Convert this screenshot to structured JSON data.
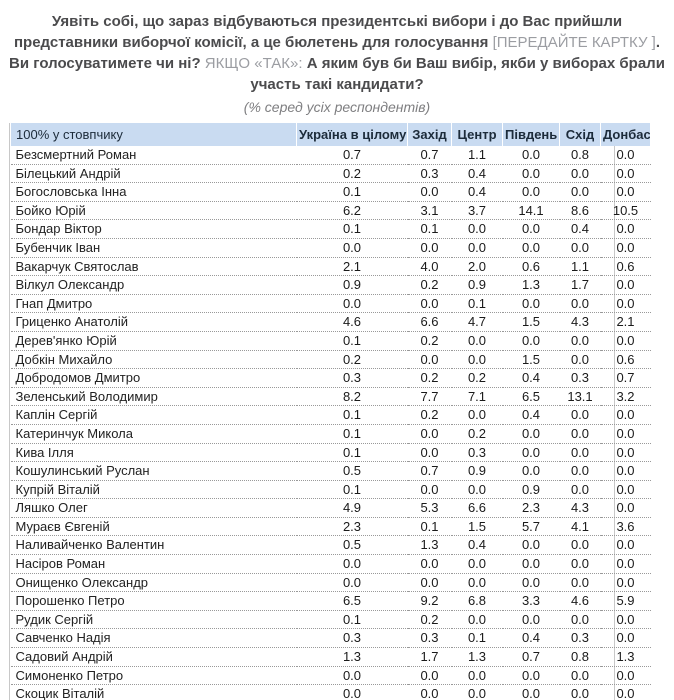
{
  "page": {
    "question_segments": [
      {
        "style": "bold",
        "text": "Уявіть собі, що зараз відбуваються президентські вибори і до Вас прийшли представники виборчої комісії, а це бюлетень для голосування "
      },
      {
        "style": "light",
        "text": "[ПЕРЕДАЙТЕ КАРТКУ ]"
      },
      {
        "style": "bold",
        "text": ". Ви голосуватимете чи ні? "
      },
      {
        "style": "light",
        "text": "ЯКЩО «ТАК»: "
      },
      {
        "style": "bold",
        "text": "А яким був би Ваш вибір, якби у виборах брали участь такі кандидати?"
      }
    ],
    "subtitle": "(% серед усіх респондентів)"
  },
  "chart_data": {
    "type": "table",
    "title": "Уявіть собі, що зараз відбуваються президентські вибори і до Вас прийшли представники виборчої комісії, а це бюлетень для голосування [ПЕРЕДАЙТЕ КАРТКУ ]. Ви голосуватимете чи ні? ЯКЩО «ТАК»: А яким був би Ваш вибір, якби у виборах брали участь такі кандидати?",
    "subtitle": "(% серед усіх респондентів)",
    "columns": [
      "100% у стовпчику",
      "Україна в цілому",
      "Захід",
      "Центр",
      "Південь",
      "Схід",
      "Донбас"
    ],
    "rows": [
      [
        "Безсмертний Роман",
        "0.7",
        "0.7",
        "1.1",
        "0.0",
        "0.8",
        "0.0"
      ],
      [
        "Білецький Андрій",
        "0.2",
        "0.3",
        "0.4",
        "0.0",
        "0.0",
        "0.0"
      ],
      [
        "Богословська Інна",
        "0.1",
        "0.0",
        "0.4",
        "0.0",
        "0.0",
        "0.0"
      ],
      [
        "Бойко Юрій",
        "6.2",
        "3.1",
        "3.7",
        "14.1",
        "8.6",
        "10.5"
      ],
      [
        "Бондар Віктор",
        "0.1",
        "0.1",
        "0.0",
        "0.0",
        "0.4",
        "0.0"
      ],
      [
        "Бубенчик Іван",
        "0.0",
        "0.0",
        "0.0",
        "0.0",
        "0.0",
        "0.0"
      ],
      [
        "Вакарчук Святослав",
        "2.1",
        "4.0",
        "2.0",
        "0.6",
        "1.1",
        "0.6"
      ],
      [
        "Вілкул Олександр",
        "0.9",
        "0.2",
        "0.9",
        "1.3",
        "1.7",
        "0.0"
      ],
      [
        "Гнап Дмитро",
        "0.0",
        "0.0",
        "0.1",
        "0.0",
        "0.0",
        "0.0"
      ],
      [
        "Гриценко Анатолій",
        "4.6",
        "6.6",
        "4.7",
        "1.5",
        "4.3",
        "2.1"
      ],
      [
        "Дерев'янко Юрій",
        "0.1",
        "0.2",
        "0.0",
        "0.0",
        "0.0",
        "0.0"
      ],
      [
        "Добкін Михайло",
        "0.2",
        "0.0",
        "0.0",
        "1.5",
        "0.0",
        "0.6"
      ],
      [
        "Добродомов Дмитро",
        "0.3",
        "0.2",
        "0.2",
        "0.4",
        "0.3",
        "0.7"
      ],
      [
        "Зеленський Володимир",
        "8.2",
        "7.7",
        "7.1",
        "6.5",
        "13.1",
        "3.2"
      ],
      [
        "Каплін Сергій",
        "0.1",
        "0.2",
        "0.0",
        "0.4",
        "0.0",
        "0.0"
      ],
      [
        "Катеринчук Микола",
        "0.1",
        "0.0",
        "0.2",
        "0.0",
        "0.0",
        "0.0"
      ],
      [
        "Кива Ілля",
        "0.1",
        "0.0",
        "0.3",
        "0.0",
        "0.0",
        "0.0"
      ],
      [
        "Кошулинський Руслан",
        "0.5",
        "0.7",
        "0.9",
        "0.0",
        "0.0",
        "0.0"
      ],
      [
        "Купрій Віталій",
        "0.1",
        "0.0",
        "0.0",
        "0.9",
        "0.0",
        "0.0"
      ],
      [
        "Ляшко Олег",
        "4.9",
        "5.3",
        "6.6",
        "2.3",
        "4.3",
        "0.0"
      ],
      [
        "Мураєв Євгеній",
        "2.3",
        "0.1",
        "1.5",
        "5.7",
        "4.1",
        "3.6"
      ],
      [
        "Наливайченко Валентин",
        "0.5",
        "1.3",
        "0.4",
        "0.0",
        "0.0",
        "0.0"
      ],
      [
        "Насіров Роман",
        "0.0",
        "0.0",
        "0.0",
        "0.0",
        "0.0",
        "0.0"
      ],
      [
        "Онищенко Олександр",
        "0.0",
        "0.0",
        "0.0",
        "0.0",
        "0.0",
        "0.0"
      ],
      [
        "Порошенко Петро",
        "6.5",
        "9.2",
        "6.8",
        "3.3",
        "4.6",
        "5.9"
      ],
      [
        "Рудик Сергій",
        "0.1",
        "0.2",
        "0.0",
        "0.0",
        "0.0",
        "0.0"
      ],
      [
        "Савченко Надія",
        "0.3",
        "0.3",
        "0.1",
        "0.4",
        "0.3",
        "0.0"
      ],
      [
        "Садовий Андрій",
        "1.3",
        "1.7",
        "1.3",
        "0.7",
        "0.8",
        "1.3"
      ],
      [
        "Симоненко Петро",
        "0.0",
        "0.0",
        "0.0",
        "0.0",
        "0.0",
        "0.0"
      ],
      [
        "Скоцик Віталій",
        "0.0",
        "0.0",
        "0.0",
        "0.0",
        "0.0",
        "0.0"
      ]
    ]
  },
  "colors": {
    "header_bg": "#c9dbf1",
    "header_text": "#1c2b3a",
    "row_border_dotted": "#999999",
    "table_side_border": "#c8c8c8",
    "question_bold_text": "#4b4b4d",
    "question_light_text": "#9b9da2",
    "subtitle_text": "#7e7e80"
  }
}
